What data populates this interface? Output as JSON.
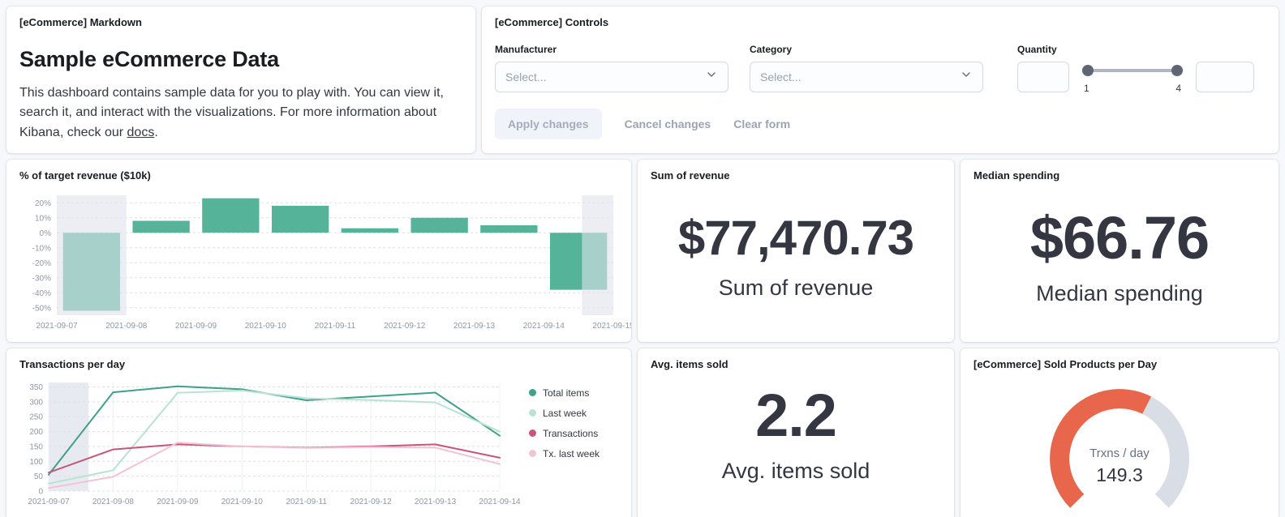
{
  "markdown_panel": {
    "title": "[eCommerce] Markdown",
    "heading": "Sample eCommerce Data",
    "body_before_link": "This dashboard contains sample data for you to play with. You can view it, search it, and interact with the visualizations. For more information about Kibana, check our ",
    "link_text": "docs",
    "body_after_link": "."
  },
  "controls_panel": {
    "title": "[eCommerce] Controls",
    "manufacturer_label": "Manufacturer",
    "manufacturer_placeholder": "Select...",
    "category_label": "Category",
    "category_placeholder": "Select...",
    "quantity_label": "Quantity",
    "quantity_min": "1",
    "quantity_max": "4",
    "apply_button": "Apply changes",
    "cancel_button": "Cancel changes",
    "clear_button": "Clear form"
  },
  "revenue_panel": {
    "title": "% of target revenue ($10k)",
    "chart_data": {
      "type": "bar",
      "categories": [
        "2021-09-07",
        "2021-09-08",
        "2021-09-09",
        "2021-09-10",
        "2021-09-11",
        "2021-09-12",
        "2021-09-13",
        "2021-09-14",
        "2021-09-15"
      ],
      "values": [
        -52,
        8,
        23,
        18,
        3,
        10,
        5,
        -38
      ],
      "yticks": [
        20,
        10,
        0,
        -10,
        -20,
        -30,
        -40,
        -50
      ],
      "ylim": [
        -55,
        25
      ],
      "bar_color": "#54b399",
      "highlight_color": "#dfe3ec",
      "highlight_slots": [
        [
          0,
          1
        ],
        [
          7.55,
          8
        ]
      ]
    }
  },
  "sum_revenue_panel": {
    "title": "Sum of revenue",
    "value": "$77,470.73",
    "label": "Sum of revenue"
  },
  "median_spending_panel": {
    "title": "Median spending",
    "value": "$66.76",
    "label": "Median spending"
  },
  "transactions_panel": {
    "title": "Transactions per day",
    "chart_data": {
      "type": "line",
      "x": [
        "2021-09-07",
        "2021-09-08",
        "2021-09-09",
        "2021-09-10",
        "2021-09-11",
        "2021-09-12",
        "2021-09-13",
        "2021-09-14"
      ],
      "yticks": [
        0,
        50,
        100,
        150,
        200,
        250,
        300,
        350
      ],
      "ylim": [
        0,
        365
      ],
      "series": [
        {
          "name": "Total items",
          "color": "#3fa188",
          "values": [
            55,
            332,
            352,
            342,
            305,
            318,
            331,
            186
          ]
        },
        {
          "name": "Last week",
          "color": "#b9e2d2",
          "values": [
            25,
            70,
            330,
            338,
            312,
            306,
            298,
            200
          ]
        },
        {
          "name": "Transactions",
          "color": "#c65779",
          "values": [
            62,
            140,
            157,
            150,
            146,
            150,
            157,
            112
          ]
        },
        {
          "name": "Tx. last week",
          "color": "#f2c4d2",
          "values": [
            10,
            48,
            163,
            150,
            145,
            148,
            146,
            91
          ]
        }
      ],
      "highlight_color": "#e7eaf1",
      "highlight_slots": [
        [
          0,
          0.62
        ]
      ],
      "legend_position": "right"
    }
  },
  "avg_items_panel": {
    "title": "Avg. items sold",
    "value": "2.2",
    "label": "Avg. items sold"
  },
  "gauge_panel": {
    "title": "[eCommerce] Sold Products per Day",
    "chart_data": {
      "type": "gauge",
      "label": "Trxns / day",
      "value": "149.3",
      "fraction": 0.6,
      "arc_color": "#e7664c",
      "track_color": "#d9dee6"
    }
  }
}
